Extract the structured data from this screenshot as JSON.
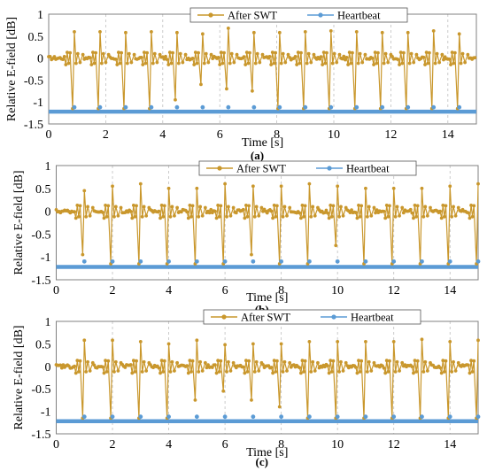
{
  "chart_data": [
    {
      "type": "line",
      "panel_label": "(a)",
      "xlabel": "Time [s]",
      "ylabel": "Relative E-field [dB]",
      "xlim": [
        0,
        15
      ],
      "ylim": [
        -1.5,
        1
      ],
      "xticks": [
        0,
        2,
        4,
        6,
        8,
        10,
        12,
        14
      ],
      "yticks": [
        -1.5,
        -1,
        -0.5,
        0,
        0.5,
        1
      ],
      "grid": "vertical dashed",
      "legend_position": "top",
      "baseline": -1.22,
      "series": [
        {
          "name": "After SWT",
          "color": "#c9972c",
          "beats": [
            0.9,
            1.8,
            2.7,
            3.6,
            4.5,
            5.4,
            6.3,
            7.2,
            8.1,
            9.0,
            9.9,
            10.8,
            11.7,
            12.6,
            13.5,
            14.4
          ],
          "peak": [
            0.6,
            0.6,
            0.58,
            0.6,
            0.58,
            0.55,
            0.68,
            0.58,
            0.58,
            0.6,
            0.62,
            0.6,
            0.58,
            0.58,
            0.62,
            0.55
          ],
          "trough": [
            -1.15,
            -1.15,
            -1.15,
            -1.15,
            -0.95,
            -0.6,
            -0.7,
            -0.75,
            -1.15,
            -1.15,
            -1.15,
            -1.15,
            -1.15,
            -1.15,
            -1.15,
            -1.15
          ]
        },
        {
          "name": "Heartbeat",
          "color": "#5b9bd5",
          "x": [
            0.9,
            1.8,
            2.7,
            3.6,
            4.5,
            5.4,
            6.3,
            7.2,
            8.1,
            9.0,
            9.9,
            10.8,
            11.7,
            12.6,
            13.5,
            14.4
          ],
          "y": [
            -1.12,
            -1.12,
            -1.12,
            -1.12,
            -1.12,
            -1.12,
            -1.12,
            -1.12,
            -1.12,
            -1.12,
            -1.12,
            -1.12,
            -1.12,
            -1.12,
            -1.12,
            -1.12
          ]
        }
      ]
    },
    {
      "type": "line",
      "panel_label": "(b)",
      "xlabel": "Time [s]",
      "ylabel": "Relative E-field [dB]",
      "xlim": [
        0,
        15
      ],
      "ylim": [
        -1.5,
        1
      ],
      "xticks": [
        0,
        2,
        4,
        6,
        8,
        10,
        12,
        14
      ],
      "yticks": [
        -1.5,
        -1,
        -0.5,
        0,
        0.5,
        1
      ],
      "grid": "vertical dashed",
      "legend_position": "top",
      "baseline": -1.22,
      "series": [
        {
          "name": "After SWT",
          "color": "#c9972c",
          "beats": [
            1,
            2,
            3,
            4,
            5,
            6,
            7,
            8,
            9,
            10,
            11,
            12,
            13,
            14,
            15
          ],
          "peak": [
            0.45,
            0.55,
            0.6,
            0.5,
            0.5,
            0.6,
            0.55,
            0.55,
            0.6,
            0.55,
            0.5,
            0.5,
            0.5,
            0.55,
            0.6
          ],
          "trough": [
            -0.95,
            -1.15,
            -1.15,
            -1.15,
            -1.15,
            -1.15,
            -0.95,
            -1.15,
            -1.15,
            -0.75,
            -1.15,
            -1.15,
            -1.15,
            -1.15,
            -1.15
          ]
        },
        {
          "name": "Heartbeat",
          "color": "#5b9bd5",
          "x": [
            1,
            2,
            3,
            4,
            5,
            6,
            7,
            8,
            9,
            10,
            11,
            12,
            13,
            14,
            15
          ],
          "y": [
            -1.1,
            -1.1,
            -1.1,
            -1.1,
            -1.1,
            -1.1,
            -1.1,
            -1.1,
            -1.1,
            -1.1,
            -1.1,
            -1.1,
            -1.1,
            -1.1,
            -1.1
          ]
        }
      ]
    },
    {
      "type": "line",
      "panel_label": "(c)",
      "xlabel": "Time [s]",
      "ylabel": "Relative E-field [dB]",
      "xlim": [
        0,
        15
      ],
      "ylim": [
        -1.5,
        1
      ],
      "xticks": [
        0,
        2,
        4,
        6,
        8,
        10,
        12,
        14
      ],
      "yticks": [
        -1.5,
        -1,
        -0.5,
        0,
        0.5,
        1
      ],
      "grid": "vertical dashed",
      "legend_position": "top",
      "baseline": -1.22,
      "series": [
        {
          "name": "After SWT",
          "color": "#c9972c",
          "beats": [
            1,
            2,
            3,
            4,
            5,
            6,
            7,
            8,
            9,
            10,
            11,
            12,
            13,
            14,
            15
          ],
          "peak": [
            0.58,
            0.58,
            0.55,
            0.5,
            0.58,
            0.48,
            0.5,
            0.5,
            0.55,
            0.55,
            0.55,
            0.55,
            0.6,
            0.55,
            0.58
          ],
          "trough": [
            -1.15,
            -1.15,
            -1.15,
            -1.15,
            -0.75,
            -0.55,
            -0.75,
            -0.9,
            -1.15,
            -1.15,
            -1.15,
            -1.15,
            -1.15,
            -1.15,
            -1.15
          ]
        },
        {
          "name": "Heartbeat",
          "color": "#5b9bd5",
          "x": [
            1,
            2,
            3,
            4,
            5,
            6,
            7,
            8,
            9,
            10,
            11,
            12,
            13,
            14,
            15
          ],
          "y": [
            -1.12,
            -1.12,
            -1.12,
            -1.12,
            -1.12,
            -1.12,
            -1.12,
            -1.12,
            -1.12,
            -1.12,
            -1.12,
            -1.12,
            -1.12,
            -1.12,
            -1.12
          ]
        }
      ]
    }
  ]
}
